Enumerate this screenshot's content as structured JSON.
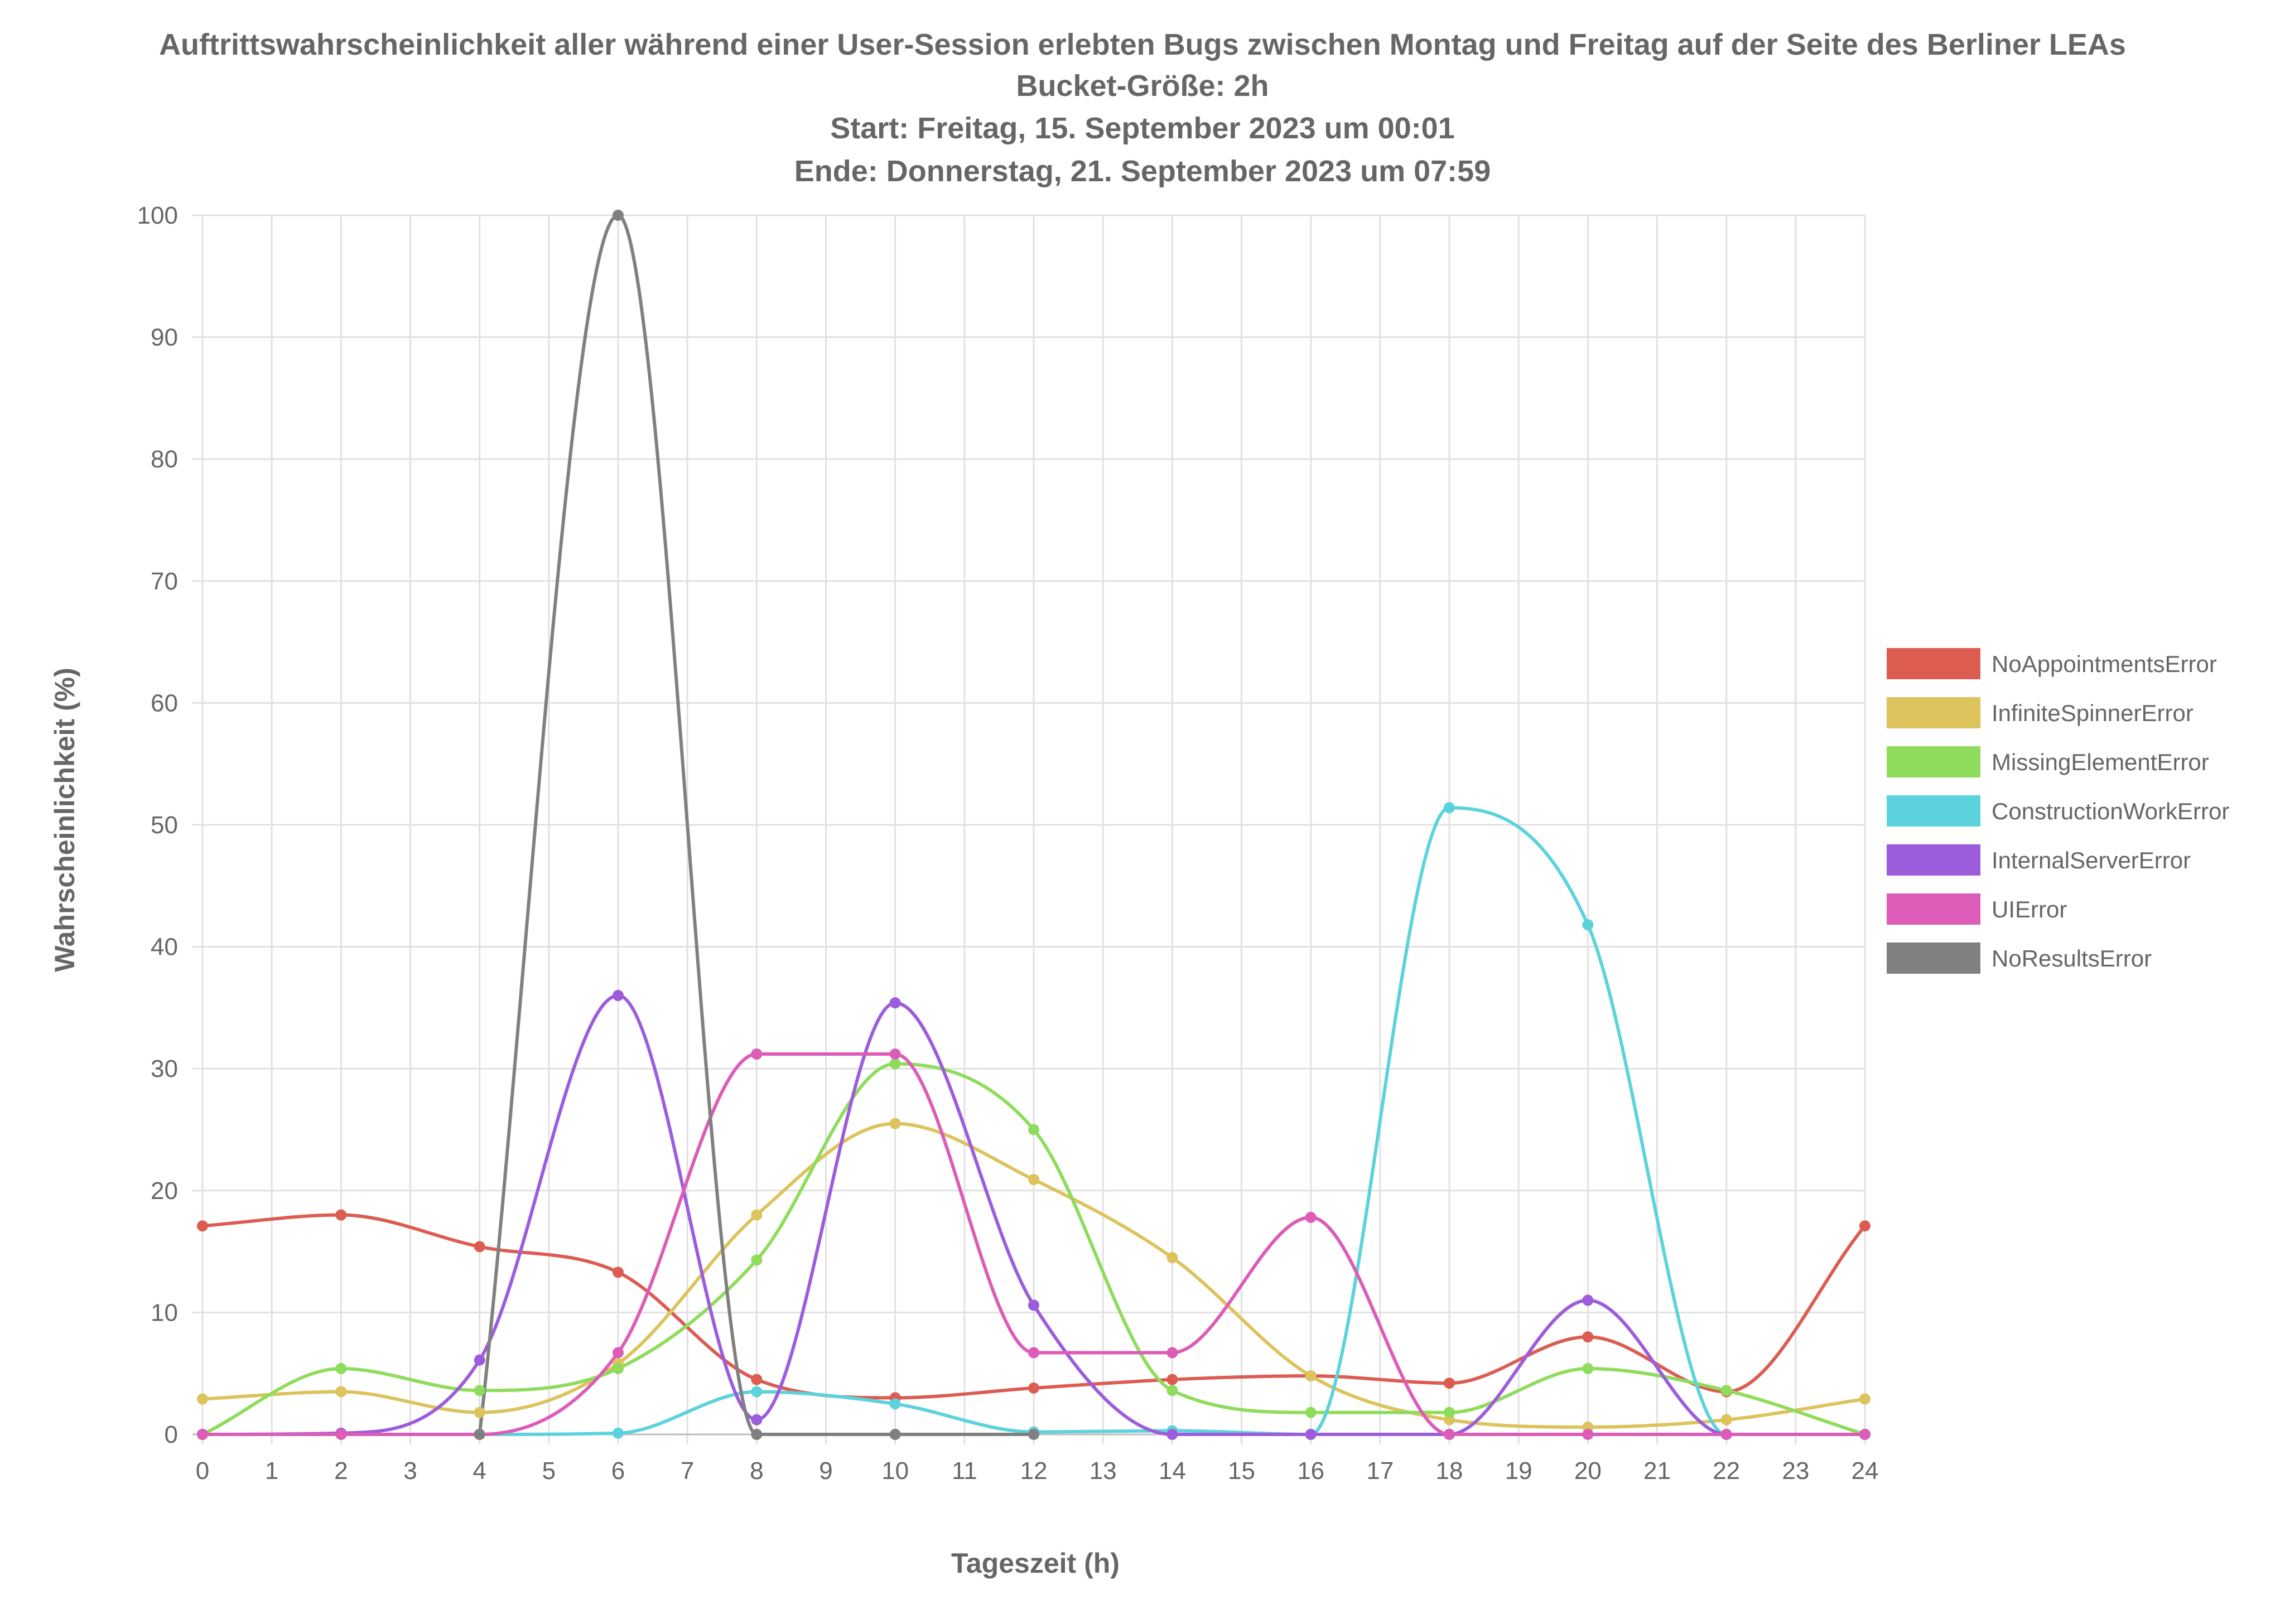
{
  "chart_data": {
    "type": "line",
    "title": [
      "Auftrittswahrscheinlichkeit aller während einer User-Session erlebten Bugs zwischen Montag und Freitag auf der Seite des Berliner LEAs",
      "Bucket-Größe: 2h",
      "Start: Freitag, 15. September 2023 um 00:01",
      "Ende: Donnerstag, 21. September 2023 um 07:59"
    ],
    "xlabel": "Tageszeit (h)",
    "ylabel": "Wahrscheinlichkeit (%)",
    "xlim": [
      0,
      24
    ],
    "ylim": [
      0,
      100
    ],
    "x_ticks": [
      "0",
      "1",
      "2",
      "3",
      "4",
      "5",
      "6",
      "7",
      "8",
      "9",
      "10",
      "11",
      "12",
      "13",
      "14",
      "15",
      "16",
      "17",
      "18",
      "19",
      "20",
      "21",
      "22",
      "23",
      "24"
    ],
    "y_ticks": [
      "0",
      "10",
      "20",
      "30",
      "40",
      "50",
      "60",
      "70",
      "80",
      "90",
      "100"
    ],
    "grid": true,
    "legend_position": "right",
    "x": [
      0,
      2,
      4,
      6,
      8,
      10,
      12,
      14,
      16,
      18,
      20,
      22,
      24
    ],
    "series": [
      {
        "name": "NoAppointmentsError",
        "color": "#dc5c52",
        "values": [
          17.1,
          18.0,
          15.4,
          13.3,
          4.5,
          3.0,
          3.8,
          4.5,
          4.8,
          4.2,
          8.0,
          3.5,
          17.1
        ]
      },
      {
        "name": "InfiniteSpinnerError",
        "color": "#dcc35c",
        "values": [
          2.9,
          3.5,
          1.8,
          5.8,
          18.0,
          25.5,
          20.9,
          14.5,
          4.8,
          1.2,
          0.6,
          1.2,
          2.9
        ]
      },
      {
        "name": "MissingElementError",
        "color": "#8fdc5c",
        "values": [
          0.0,
          5.4,
          3.6,
          5.4,
          14.3,
          30.4,
          25.0,
          3.6,
          1.8,
          1.8,
          5.4,
          3.6,
          0.0
        ]
      },
      {
        "name": "ConstructionWorkError",
        "color": "#5cd3dc",
        "values": [
          0.0,
          0.0,
          0.0,
          0.1,
          3.5,
          2.5,
          0.2,
          0.3,
          0.0,
          51.4,
          41.8,
          0.0,
          0.0
        ]
      },
      {
        "name": "InternalServerError",
        "color": "#9d5cdc",
        "values": [
          0.0,
          0.1,
          6.1,
          36.0,
          1.2,
          35.4,
          10.6,
          0.0,
          0.0,
          0.0,
          11.0,
          0.0,
          0.0
        ]
      },
      {
        "name": "UIError",
        "color": "#dc5cb8",
        "values": [
          0.0,
          0.0,
          0.0,
          6.7,
          31.2,
          31.2,
          6.7,
          6.7,
          17.8,
          0.0,
          0.0,
          0.0,
          0.0
        ]
      },
      {
        "name": "NoResultsError",
        "color": "#808080",
        "values": [
          null,
          null,
          0.0,
          100.0,
          0.0,
          0.0,
          0.0,
          null,
          null,
          null,
          null,
          null,
          null
        ]
      }
    ]
  }
}
